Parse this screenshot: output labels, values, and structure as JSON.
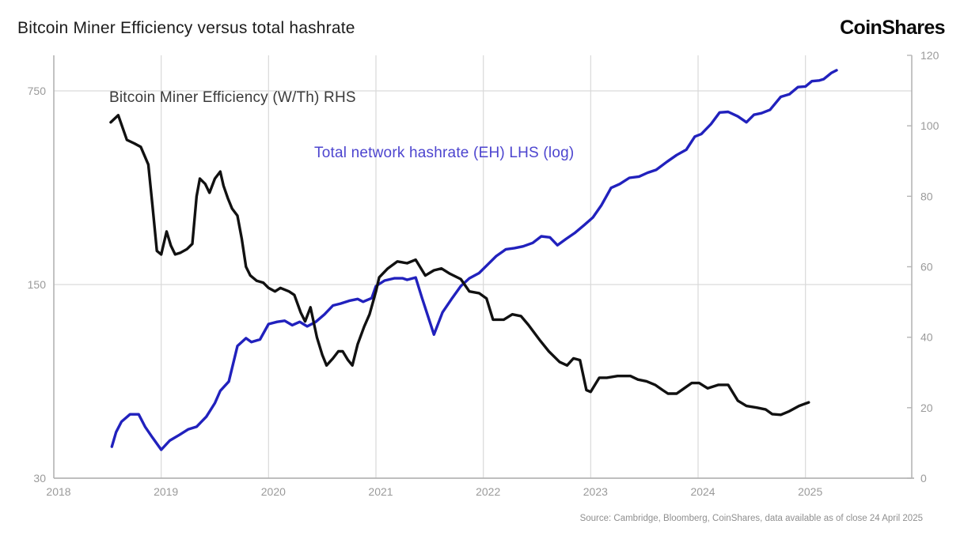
{
  "header": {
    "title": "Bitcoin Miner Efficiency versus total hashrate",
    "brand": "CoinShares"
  },
  "source": "Source: Cambridge, Bloomberg, CoinShares, data available as of close 24 April 2025",
  "colors": {
    "efficiency_line": "#111111",
    "hashrate_line": "#2121bd",
    "legend_efficiency_text": "#3a3a3a",
    "legend_hashrate_text": "#4d45cf",
    "gridline": "#d9d9d9",
    "axis_line": "#b5b5b5",
    "tick_label": "#9a9a9a"
  },
  "chart_data": {
    "type": "line",
    "title": "Bitcoin Miner Efficiency versus total hashrate",
    "legend": {
      "efficiency": "Bitcoin Miner Efficiency (W/Th) RHS",
      "hashrate": "Total network hashrate (EH) LHS (log)"
    },
    "x_axis": {
      "ticks": [
        2018,
        2019,
        2020,
        2021,
        2022,
        2023,
        2024,
        2025
      ],
      "range": [
        2018,
        2025.99
      ],
      "gridlines": true
    },
    "left_axis": {
      "scale": "log",
      "unit": "EH",
      "ticks": [
        750,
        150,
        30
      ],
      "range_bottom": 30,
      "gridline_values": [
        150,
        750
      ],
      "applies_to": "Total network hashrate (EH)"
    },
    "right_axis": {
      "scale": "linear",
      "unit": "W/Th",
      "ticks": [
        0,
        20,
        40,
        60,
        80,
        100,
        120
      ],
      "range": [
        0,
        120
      ],
      "applies_to": "Bitcoin Miner Efficiency (W/Th)"
    },
    "series": [
      {
        "name": "Total network hashrate (EH)",
        "axis": "left_log",
        "color": "#2121bd",
        "points": [
          [
            2018.54,
            39
          ],
          [
            2018.58,
            44
          ],
          [
            2018.63,
            48
          ],
          [
            2018.71,
            51
          ],
          [
            2018.79,
            51
          ],
          [
            2018.85,
            46
          ],
          [
            2018.92,
            42
          ],
          [
            2019.0,
            38
          ],
          [
            2019.08,
            41
          ],
          [
            2019.17,
            43
          ],
          [
            2019.25,
            45
          ],
          [
            2019.33,
            46
          ],
          [
            2019.42,
            50
          ],
          [
            2019.5,
            56
          ],
          [
            2019.55,
            62
          ],
          [
            2019.63,
            67
          ],
          [
            2019.71,
            90
          ],
          [
            2019.79,
            96
          ],
          [
            2019.84,
            93
          ],
          [
            2019.92,
            95
          ],
          [
            2020.0,
            108
          ],
          [
            2020.08,
            110
          ],
          [
            2020.15,
            111
          ],
          [
            2020.22,
            107
          ],
          [
            2020.29,
            110
          ],
          [
            2020.36,
            106
          ],
          [
            2020.44,
            110
          ],
          [
            2020.52,
            117
          ],
          [
            2020.6,
            126
          ],
          [
            2020.67,
            128
          ],
          [
            2020.75,
            131
          ],
          [
            2020.83,
            133
          ],
          [
            2020.88,
            130
          ],
          [
            2020.96,
            134
          ],
          [
            2021.0,
            148
          ],
          [
            2021.08,
            155
          ],
          [
            2021.17,
            158
          ],
          [
            2021.25,
            158
          ],
          [
            2021.29,
            156
          ],
          [
            2021.37,
            159
          ],
          [
            2021.43,
            134
          ],
          [
            2021.54,
            99
          ],
          [
            2021.62,
            119
          ],
          [
            2021.71,
            134
          ],
          [
            2021.79,
            148
          ],
          [
            2021.87,
            158
          ],
          [
            2021.96,
            165
          ],
          [
            2022.04,
            177
          ],
          [
            2022.12,
            190
          ],
          [
            2022.21,
            201
          ],
          [
            2022.29,
            203
          ],
          [
            2022.37,
            206
          ],
          [
            2022.46,
            212
          ],
          [
            2022.54,
            224
          ],
          [
            2022.62,
            222
          ],
          [
            2022.69,
            208
          ],
          [
            2022.77,
            219
          ],
          [
            2022.85,
            230
          ],
          [
            2022.94,
            246
          ],
          [
            2023.02,
            262
          ],
          [
            2023.1,
            290
          ],
          [
            2023.19,
            335
          ],
          [
            2023.27,
            346
          ],
          [
            2023.36,
            364
          ],
          [
            2023.45,
            368
          ],
          [
            2023.53,
            380
          ],
          [
            2023.61,
            389
          ],
          [
            2023.71,
            416
          ],
          [
            2023.8,
            440
          ],
          [
            2023.89,
            460
          ],
          [
            2023.97,
            513
          ],
          [
            2024.03,
            524
          ],
          [
            2024.12,
            569
          ],
          [
            2024.2,
            627
          ],
          [
            2024.28,
            630
          ],
          [
            2024.37,
            607
          ],
          [
            2024.45,
            578
          ],
          [
            2024.52,
            615
          ],
          [
            2024.59,
            623
          ],
          [
            2024.67,
            641
          ],
          [
            2024.77,
            714
          ],
          [
            2024.85,
            729
          ],
          [
            2024.93,
            774
          ],
          [
            2025.0,
            778
          ],
          [
            2025.06,
            813
          ],
          [
            2025.13,
            818
          ],
          [
            2025.17,
            827
          ],
          [
            2025.24,
            870
          ],
          [
            2025.29,
            890
          ]
        ]
      },
      {
        "name": "Bitcoin Miner Efficiency (W/Th)",
        "axis": "right",
        "color": "#111111",
        "points": [
          [
            2018.53,
            101
          ],
          [
            2018.6,
            103
          ],
          [
            2018.68,
            96
          ],
          [
            2018.75,
            95
          ],
          [
            2018.81,
            94
          ],
          [
            2018.88,
            89
          ],
          [
            2018.92,
            77
          ],
          [
            2018.96,
            64.5
          ],
          [
            2019.0,
            63.5
          ],
          [
            2019.05,
            70
          ],
          [
            2019.09,
            66
          ],
          [
            2019.13,
            63.5
          ],
          [
            2019.18,
            64
          ],
          [
            2019.24,
            65
          ],
          [
            2019.29,
            66.5
          ],
          [
            2019.33,
            80
          ],
          [
            2019.36,
            85
          ],
          [
            2019.41,
            83.5
          ],
          [
            2019.45,
            81
          ],
          [
            2019.5,
            85
          ],
          [
            2019.55,
            87
          ],
          [
            2019.58,
            83
          ],
          [
            2019.62,
            79.5
          ],
          [
            2019.66,
            76.5
          ],
          [
            2019.71,
            74.5
          ],
          [
            2019.75,
            68
          ],
          [
            2019.79,
            60
          ],
          [
            2019.83,
            57.5
          ],
          [
            2019.89,
            56
          ],
          [
            2019.95,
            55.5
          ],
          [
            2020.0,
            54
          ],
          [
            2020.06,
            53
          ],
          [
            2020.11,
            54
          ],
          [
            2020.19,
            53
          ],
          [
            2020.24,
            52
          ],
          [
            2020.3,
            47
          ],
          [
            2020.34,
            44.5
          ],
          [
            2020.39,
            48.5
          ],
          [
            2020.45,
            40
          ],
          [
            2020.5,
            35
          ],
          [
            2020.54,
            32
          ],
          [
            2020.6,
            34
          ],
          [
            2020.65,
            36
          ],
          [
            2020.69,
            36
          ],
          [
            2020.74,
            33.5
          ],
          [
            2020.78,
            32
          ],
          [
            2020.83,
            38
          ],
          [
            2020.89,
            43
          ],
          [
            2020.94,
            46.5
          ],
          [
            2021.0,
            53
          ],
          [
            2021.03,
            57
          ],
          [
            2021.11,
            59.5
          ],
          [
            2021.2,
            61.5
          ],
          [
            2021.29,
            61
          ],
          [
            2021.37,
            62
          ],
          [
            2021.46,
            57.5
          ],
          [
            2021.54,
            59
          ],
          [
            2021.61,
            59.5
          ],
          [
            2021.69,
            58
          ],
          [
            2021.79,
            56.5
          ],
          [
            2021.87,
            53
          ],
          [
            2021.96,
            52.5
          ],
          [
            2022.03,
            51
          ],
          [
            2022.09,
            45
          ],
          [
            2022.19,
            45
          ],
          [
            2022.27,
            46.5
          ],
          [
            2022.35,
            46
          ],
          [
            2022.42,
            43.5
          ],
          [
            2022.53,
            39
          ],
          [
            2022.61,
            36
          ],
          [
            2022.71,
            33
          ],
          [
            2022.78,
            32
          ],
          [
            2022.84,
            34
          ],
          [
            2022.9,
            33.5
          ],
          [
            2022.96,
            25
          ],
          [
            2023.0,
            24.5
          ],
          [
            2023.08,
            28.5
          ],
          [
            2023.15,
            28.5
          ],
          [
            2023.25,
            29
          ],
          [
            2023.37,
            29
          ],
          [
            2023.44,
            28
          ],
          [
            2023.52,
            27.5
          ],
          [
            2023.6,
            26.5
          ],
          [
            2023.67,
            25
          ],
          [
            2023.72,
            24
          ],
          [
            2023.8,
            24
          ],
          [
            2023.87,
            25.5
          ],
          [
            2023.94,
            27
          ],
          [
            2024.01,
            27
          ],
          [
            2024.09,
            25.5
          ],
          [
            2024.19,
            26.5
          ],
          [
            2024.28,
            26.5
          ],
          [
            2024.37,
            22
          ],
          [
            2024.45,
            20.5
          ],
          [
            2024.55,
            20
          ],
          [
            2024.63,
            19.5
          ],
          [
            2024.69,
            18.2
          ],
          [
            2024.77,
            18
          ],
          [
            2024.85,
            19
          ],
          [
            2024.94,
            20.5
          ],
          [
            2025.03,
            21.5
          ]
        ]
      }
    ]
  }
}
